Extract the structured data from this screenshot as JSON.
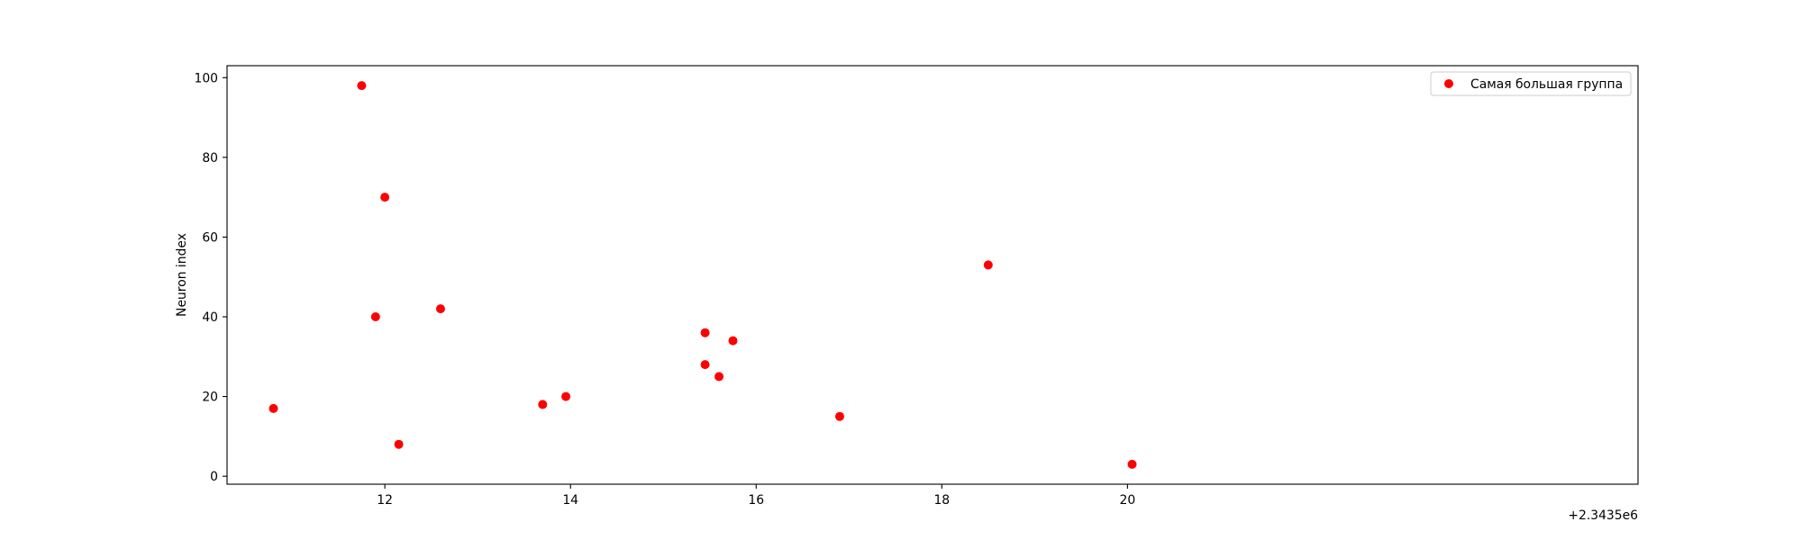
{
  "chart_data": {
    "type": "scatter",
    "title": "",
    "xlabel": "",
    "ylabel": "Neuron index",
    "x_offset_label": "+2.3435e6",
    "xlim": [
      10.3,
      25.5
    ],
    "ylim": [
      -2,
      103
    ],
    "x_ticks": [
      12,
      14,
      16,
      18,
      20
    ],
    "y_ticks": [
      0,
      20,
      40,
      60,
      80,
      100
    ],
    "grid": false,
    "legend_position": "top-right",
    "series": [
      {
        "name": "Самая большая группа",
        "color": "#ff0000",
        "marker": "circle",
        "points": [
          {
            "x": 10.8,
            "y": 17
          },
          {
            "x": 11.75,
            "y": 98
          },
          {
            "x": 11.9,
            "y": 40
          },
          {
            "x": 12.0,
            "y": 70
          },
          {
            "x": 12.15,
            "y": 8
          },
          {
            "x": 12.6,
            "y": 42
          },
          {
            "x": 13.7,
            "y": 18
          },
          {
            "x": 13.95,
            "y": 20
          },
          {
            "x": 15.45,
            "y": 36
          },
          {
            "x": 15.45,
            "y": 28
          },
          {
            "x": 15.6,
            "y": 25
          },
          {
            "x": 15.75,
            "y": 34
          },
          {
            "x": 16.9,
            "y": 15
          },
          {
            "x": 18.5,
            "y": 53
          },
          {
            "x": 20.05,
            "y": 3
          }
        ]
      }
    ]
  }
}
